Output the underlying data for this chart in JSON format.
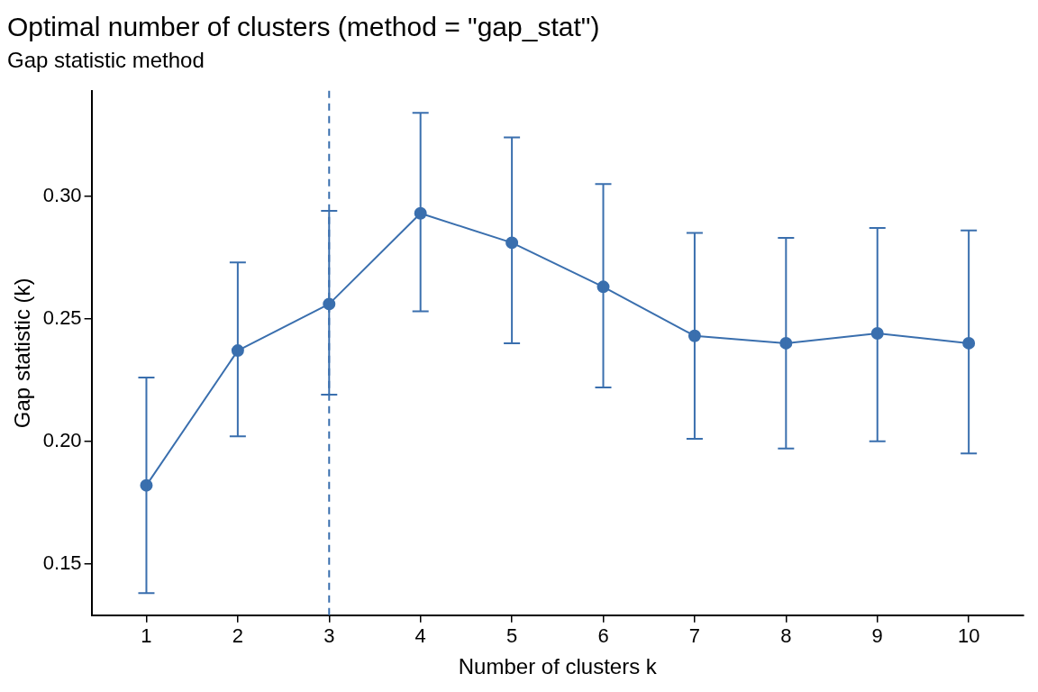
{
  "chart_data": {
    "type": "line",
    "title": "Optimal number of clusters (method = \"gap_stat\")",
    "subtitle": "Gap statistic method",
    "xlabel": "Number of clusters k",
    "ylabel": "Gap statistic (k)",
    "x": [
      1,
      2,
      3,
      4,
      5,
      6,
      7,
      8,
      9,
      10
    ],
    "series": [
      {
        "color": "#3a6fae",
        "values": [
          0.182,
          0.237,
          0.256,
          0.293,
          0.281,
          0.263,
          0.243,
          0.24,
          0.244,
          0.24
        ],
        "errors": [
          [
            0.138,
            0.226
          ],
          [
            0.202,
            0.273
          ],
          [
            0.219,
            0.294
          ],
          [
            0.253,
            0.334
          ],
          [
            0.24,
            0.324
          ],
          [
            0.222,
            0.305
          ],
          [
            0.201,
            0.285
          ],
          [
            0.197,
            0.283
          ],
          [
            0.2,
            0.287
          ],
          [
            0.195,
            0.286
          ]
        ]
      }
    ],
    "xlim": [
      0.4,
      10.6
    ],
    "xticks": [
      1,
      2,
      3,
      4,
      5,
      6,
      7,
      8,
      9,
      10
    ],
    "ylim": [
      0.129,
      0.343
    ],
    "yticks": [
      0.15,
      {
        "value": 0.2,
        "label": "0.20"
      },
      0.25,
      {
        "value": 0.3,
        "label": "0.30"
      }
    ],
    "ref_lines": [
      {
        "axis": "x",
        "value": 3,
        "color": "#3a6fae",
        "line_style": "dashed"
      }
    ],
    "grid": false,
    "legend": false,
    "marker": "circle",
    "line_style": "solid"
  }
}
